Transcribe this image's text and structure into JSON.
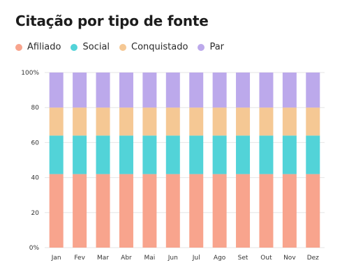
{
  "chart_data": {
    "type": "bar",
    "stacked": true,
    "title": "Citação por tipo de fonte",
    "categories": [
      "Jan",
      "Fev",
      "Mar",
      "Abr",
      "Mai",
      "Jun",
      "Jul",
      "Ago",
      "Set",
      "Out",
      "Nov",
      "Dez"
    ],
    "series": [
      {
        "name": "Afiliado",
        "color": "#F8A48D",
        "values": [
          42,
          42,
          42,
          42,
          42,
          42,
          42,
          42,
          42,
          42,
          42,
          42
        ]
      },
      {
        "name": "Social",
        "color": "#52D3D8",
        "values": [
          22,
          22,
          22,
          22,
          22,
          22,
          22,
          22,
          22,
          22,
          22,
          22
        ]
      },
      {
        "name": "Conquistado",
        "color": "#F5C894",
        "values": [
          16,
          16,
          16,
          16,
          16,
          16,
          16,
          16,
          16,
          16,
          16,
          16
        ]
      },
      {
        "name": "Par",
        "color": "#BCA9EB",
        "values": [
          20,
          20,
          20,
          20,
          20,
          20,
          20,
          20,
          20,
          20,
          20,
          20
        ]
      }
    ],
    "ylim": [
      0,
      100
    ],
    "yticks": [
      "0%",
      "20",
      "40",
      "60",
      "80",
      "100%"
    ],
    "legend_position": "top-left",
    "grid": true
  }
}
